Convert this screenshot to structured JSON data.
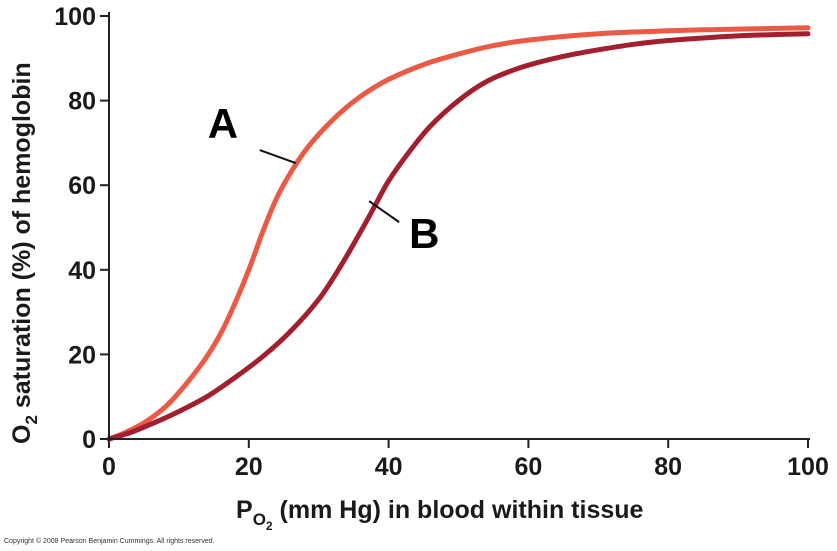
{
  "chart_data": {
    "type": "line",
    "xlabel": {
      "main": "P",
      "subscript_base": "O",
      "subscript_num": "2",
      "rest": " (mm Hg) in blood within tissue"
    },
    "ylabel": {
      "pre": "O",
      "subscript": "2",
      "rest": " saturation (%) of hemoglobin"
    },
    "xlim": [
      0,
      100
    ],
    "ylim": [
      0,
      100
    ],
    "x_ticks": [
      0,
      20,
      40,
      60,
      80,
      100
    ],
    "y_ticks": [
      0,
      20,
      40,
      60,
      80,
      100
    ],
    "grid": false,
    "series": [
      {
        "name": "A",
        "color": "#ea5a45",
        "label_at": [
          27,
          65
        ],
        "points": [
          [
            0,
            0
          ],
          [
            2,
            1.3
          ],
          [
            5,
            3.8
          ],
          [
            8,
            7.5
          ],
          [
            10,
            11
          ],
          [
            12,
            15
          ],
          [
            14,
            19.5
          ],
          [
            16,
            25
          ],
          [
            18,
            32
          ],
          [
            20,
            40
          ],
          [
            22,
            49
          ],
          [
            24,
            57
          ],
          [
            26,
            63
          ],
          [
            28,
            68
          ],
          [
            30,
            72
          ],
          [
            33,
            77
          ],
          [
            36,
            81
          ],
          [
            40,
            85
          ],
          [
            45,
            88.5
          ],
          [
            50,
            91
          ],
          [
            55,
            93
          ],
          [
            60,
            94.3
          ],
          [
            70,
            95.8
          ],
          [
            80,
            96.5
          ],
          [
            90,
            96.9
          ],
          [
            100,
            97.2
          ]
        ]
      },
      {
        "name": "B",
        "color": "#a11f2e",
        "label_at": [
          37.5,
          56
        ],
        "points": [
          [
            0,
            0
          ],
          [
            3,
            1.5
          ],
          [
            6,
            3.5
          ],
          [
            10,
            6.5
          ],
          [
            14,
            10
          ],
          [
            18,
            14.5
          ],
          [
            22,
            19.5
          ],
          [
            26,
            25.5
          ],
          [
            30,
            33
          ],
          [
            33,
            40.5
          ],
          [
            36,
            49
          ],
          [
            38,
            55
          ],
          [
            40,
            61
          ],
          [
            43,
            68
          ],
          [
            46,
            74
          ],
          [
            50,
            80
          ],
          [
            54,
            84.5
          ],
          [
            58,
            87.3
          ],
          [
            62,
            89.3
          ],
          [
            66,
            90.8
          ],
          [
            70,
            92
          ],
          [
            75,
            93.3
          ],
          [
            80,
            94.2
          ],
          [
            85,
            94.8
          ],
          [
            90,
            95.3
          ],
          [
            95,
            95.6
          ],
          [
            100,
            95.8
          ]
        ]
      }
    ]
  },
  "copyright": "Copyright © 2008 Pearson Benjamin Cummings. All rights reserved."
}
